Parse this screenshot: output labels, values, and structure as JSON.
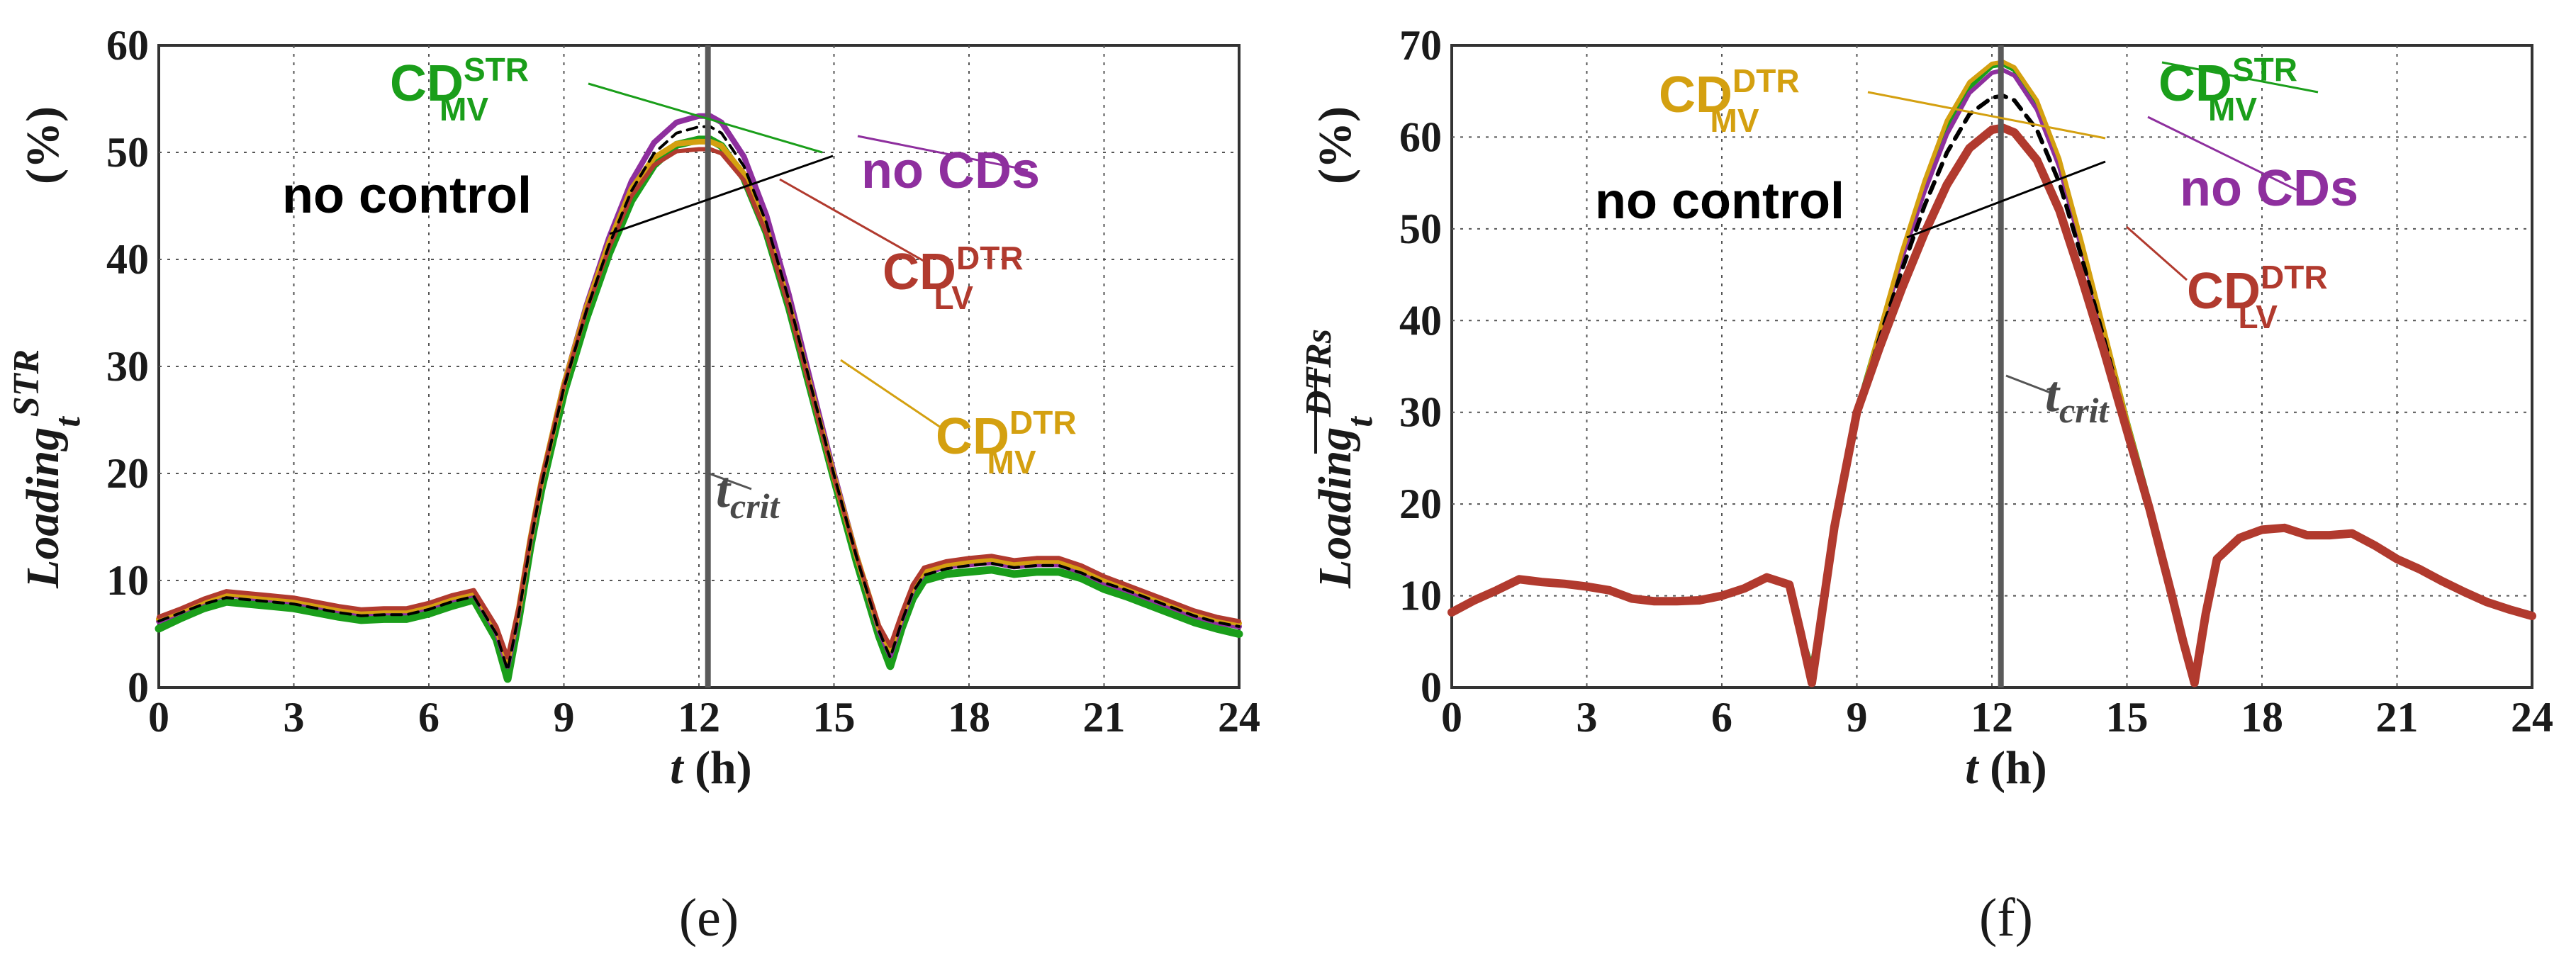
{
  "charts": [
    {
      "id": "e",
      "panel_label": "(e)",
      "ylabel_main": "Loading",
      "ylabel_sub": "t",
      "ylabel_sup": "STR",
      "ylabel_unit": "(%)",
      "xlabel_var": "t",
      "xlabel_unit": " (h)",
      "t_crit_base": "t",
      "t_crit_sub": "crit",
      "annotations": [
        {
          "base": "CD",
          "sup": "STR",
          "sub": "MV",
          "color": "#1a9e1a"
        },
        {
          "text": "no CDs",
          "color": "#8e2f9e"
        },
        {
          "text": "no control",
          "color": "#000000"
        },
        {
          "base": "CD",
          "sup": "DTR",
          "sub": "LV",
          "color": "#b13a2e"
        },
        {
          "base": "CD",
          "sup": "DTR",
          "sub": "MV",
          "color": "#d4a010"
        }
      ]
    },
    {
      "id": "f",
      "panel_label": "(f)",
      "ylabel_main": "Loading",
      "ylabel_sub": "t",
      "ylabel_sup": "DTRs",
      "ylabel_unit": "(%)",
      "xlabel_var": "t",
      "xlabel_unit": " (h)",
      "t_crit_base": "t",
      "t_crit_sub": "crit",
      "annotations": [
        {
          "base": "CD",
          "sup": "DTR",
          "sub": "MV",
          "color": "#d4a010"
        },
        {
          "base": "CD",
          "sup": "STR",
          "sub": "MV",
          "color": "#1a9e1a"
        },
        {
          "text": "no control",
          "color": "#000000"
        },
        {
          "text": "no CDs",
          "color": "#8e2f9e"
        },
        {
          "base": "CD",
          "sup": "DTR",
          "sub": "LV",
          "color": "#b13a2e"
        }
      ]
    }
  ],
  "chart_data": [
    {
      "type": "line",
      "title": "",
      "xlabel": "t (h)",
      "ylabel": "Loading_t^STR (%)",
      "xlim": [
        0,
        24
      ],
      "ylim": [
        0,
        60
      ],
      "xticks": [
        0,
        3,
        6,
        9,
        12,
        15,
        18,
        21,
        24
      ],
      "yticks": [
        0,
        10,
        20,
        30,
        40,
        50,
        60
      ],
      "grid": true,
      "vline": {
        "x": 12.2,
        "label": "t_crit"
      },
      "x": [
        0,
        0.5,
        1,
        1.5,
        2,
        2.5,
        3,
        3.5,
        4,
        4.5,
        5,
        5.5,
        6,
        6.5,
        7,
        7.5,
        7.75,
        8,
        8.25,
        8.5,
        9,
        9.5,
        10,
        10.5,
        11,
        11.5,
        12,
        12.25,
        12.5,
        13,
        13.5,
        14,
        14.5,
        15,
        15.5,
        16,
        16.25,
        16.5,
        16.75,
        17,
        17.5,
        18,
        18.5,
        19,
        19.5,
        20,
        20.5,
        21,
        21.5,
        22,
        22.5,
        23,
        23.5,
        24
      ],
      "series": [
        {
          "name": "CD_MV^STR",
          "color": "#1a9e1a",
          "width": 11,
          "dash": "",
          "values": [
            5.5,
            6.5,
            7.4,
            8.0,
            7.8,
            7.6,
            7.4,
            7.0,
            6.6,
            6.3,
            6.4,
            6.4,
            6.9,
            7.6,
            8.2,
            4.5,
            0.8,
            6.5,
            13.0,
            18.5,
            27.5,
            34.5,
            40.5,
            45.5,
            48.8,
            50.7,
            51.2,
            51.2,
            50.6,
            47.6,
            42.5,
            35.5,
            27.5,
            19.5,
            11.8,
            4.8,
            2.0,
            5.5,
            8.3,
            10.0,
            10.6,
            10.8,
            11.0,
            10.6,
            10.8,
            10.8,
            10.2,
            9.2,
            8.5,
            7.7,
            6.9,
            6.1,
            5.5,
            5.0
          ]
        },
        {
          "name": "no CDs",
          "color": "#8e2f9e",
          "width": 8,
          "dash": "",
          "values": [
            6.2,
            7.1,
            8.0,
            8.7,
            8.4,
            8.2,
            8.0,
            7.6,
            7.2,
            6.9,
            7.0,
            7.0,
            7.5,
            8.2,
            8.7,
            5.2,
            2.0,
            7.2,
            13.6,
            19.2,
            28.3,
            35.7,
            42.0,
            47.3,
            50.9,
            52.8,
            53.4,
            53.4,
            52.8,
            49.6,
            44.1,
            36.7,
            28.3,
            20.0,
            12.3,
            5.4,
            3.0,
            6.3,
            9.1,
            10.7,
            11.3,
            11.5,
            11.7,
            11.3,
            11.5,
            11.5,
            10.8,
            9.8,
            9.1,
            8.3,
            7.5,
            6.7,
            6.1,
            5.7
          ]
        },
        {
          "name": "CD_MV^DTR",
          "color": "#d4a010",
          "width": 8,
          "dash": "",
          "values": [
            6.4,
            7.2,
            8.1,
            8.8,
            8.6,
            8.4,
            8.2,
            7.8,
            7.4,
            7.1,
            7.2,
            7.2,
            7.7,
            8.4,
            8.9,
            5.5,
            2.5,
            7.4,
            13.8,
            19.3,
            28.3,
            35.5,
            41.5,
            46.6,
            49.5,
            50.8,
            51.0,
            51.0,
            50.6,
            48.0,
            42.9,
            35.8,
            27.7,
            19.7,
            12.3,
            5.6,
            3.5,
            6.6,
            9.3,
            10.9,
            11.5,
            11.8,
            12.0,
            11.6,
            11.8,
            11.8,
            11.1,
            10.1,
            9.4,
            8.6,
            7.8,
            7.0,
            6.4,
            6.0
          ]
        },
        {
          "name": "CD_LV^DTR",
          "color": "#b13a2e",
          "width": 6,
          "dash": "",
          "values": [
            6.6,
            7.4,
            8.3,
            9.0,
            8.8,
            8.6,
            8.4,
            8.0,
            7.6,
            7.3,
            7.4,
            7.4,
            7.9,
            8.6,
            9.1,
            5.7,
            2.8,
            7.6,
            13.9,
            19.4,
            28.2,
            35.2,
            41.0,
            45.9,
            48.8,
            50.1,
            50.3,
            50.3,
            49.9,
            47.4,
            42.4,
            35.5,
            27.5,
            19.6,
            12.3,
            5.8,
            3.9,
            6.9,
            9.6,
            11.2,
            11.8,
            12.1,
            12.3,
            11.9,
            12.1,
            12.1,
            11.4,
            10.4,
            9.6,
            8.8,
            8.0,
            7.2,
            6.6,
            6.2
          ]
        },
        {
          "name": "no control",
          "color": "#000000",
          "width": 4,
          "dash": "14 10",
          "values": [
            6.2,
            7.0,
            7.8,
            8.4,
            8.2,
            8.0,
            7.8,
            7.4,
            7.0,
            6.7,
            6.8,
            6.8,
            7.3,
            8.0,
            8.5,
            5.0,
            1.6,
            6.9,
            13.3,
            18.9,
            28.0,
            35.2,
            41.3,
            46.4,
            49.9,
            51.8,
            52.4,
            52.4,
            51.8,
            48.7,
            43.4,
            36.2,
            28.0,
            19.9,
            12.2,
            5.3,
            2.8,
            6.1,
            8.9,
            10.5,
            11.1,
            11.4,
            11.6,
            11.2,
            11.4,
            11.4,
            10.7,
            9.8,
            9.1,
            8.3,
            7.5,
            6.7,
            6.1,
            5.7
          ]
        }
      ]
    },
    {
      "type": "line",
      "title": "",
      "xlabel": "t (h)",
      "ylabel": "Loading_t^DTRs (%)",
      "xlim": [
        0,
        24
      ],
      "ylim": [
        0,
        70
      ],
      "xticks": [
        0,
        3,
        6,
        9,
        12,
        15,
        18,
        21,
        24
      ],
      "yticks": [
        0,
        10,
        20,
        30,
        40,
        50,
        60,
        70
      ],
      "grid": true,
      "vline": {
        "x": 12.2,
        "label": "t_crit"
      },
      "x": [
        0,
        0.5,
        1,
        1.5,
        2,
        2.5,
        3,
        3.5,
        4,
        4.5,
        5,
        5.5,
        6,
        6.5,
        7,
        7.5,
        7.75,
        8,
        8.25,
        8.5,
        9,
        9.5,
        10,
        10.5,
        11,
        11.5,
        12,
        12.25,
        12.5,
        13,
        13.5,
        14,
        14.5,
        15,
        15.5,
        16,
        16.25,
        16.5,
        16.75,
        17,
        17.5,
        18,
        18.5,
        19,
        19.5,
        20,
        20.5,
        21,
        21.5,
        22,
        22.5,
        23,
        23.5,
        24
      ],
      "series": [
        {
          "name": "CD_MV^STR",
          "color": "#1a9e1a",
          "width": 8,
          "dash": "",
          "values": [
            8.2,
            9.5,
            10.6,
            11.8,
            11.5,
            11.3,
            11.0,
            10.6,
            9.7,
            9.4,
            9.4,
            9.5,
            10.0,
            10.8,
            12.0,
            11.2,
            6.0,
            2.0,
            9.0,
            17.5,
            30.0,
            38.5,
            47.0,
            54.5,
            61.0,
            65.5,
            67.8,
            68.0,
            67.4,
            63.5,
            57.0,
            48.0,
            38.5,
            29.0,
            20.0,
            10.0,
            5.0,
            0.8,
            8.0,
            14.0,
            16.3,
            17.2,
            17.4,
            16.6,
            16.6,
            16.8,
            15.5,
            14.0,
            12.9,
            11.6,
            10.4,
            9.3,
            8.5,
            7.8
          ]
        },
        {
          "name": "no CDs",
          "color": "#8e2f9e",
          "width": 6,
          "dash": "",
          "values": [
            8.2,
            9.5,
            10.6,
            11.8,
            11.5,
            11.3,
            11.0,
            10.6,
            9.7,
            9.4,
            9.4,
            9.5,
            10.0,
            10.8,
            12.0,
            11.2,
            6.0,
            2.0,
            9.0,
            17.5,
            30.0,
            38.3,
            46.7,
            54.0,
            60.3,
            64.8,
            67.0,
            67.3,
            66.7,
            63.0,
            56.7,
            47.7,
            38.3,
            28.9,
            19.9,
            10.0,
            5.0,
            0.8,
            8.0,
            14.0,
            16.3,
            17.2,
            17.4,
            16.6,
            16.6,
            16.8,
            15.5,
            14.0,
            12.9,
            11.6,
            10.4,
            9.3,
            8.5,
            7.8
          ]
        },
        {
          "name": "CD_MV^DTR",
          "color": "#d4a010",
          "width": 6,
          "dash": "",
          "values": [
            8.2,
            9.5,
            10.6,
            11.8,
            11.5,
            11.3,
            11.0,
            10.6,
            9.7,
            9.4,
            9.4,
            9.5,
            10.0,
            10.8,
            12.0,
            11.2,
            6.0,
            2.0,
            9.0,
            17.5,
            30.0,
            38.8,
            47.5,
            55.2,
            61.8,
            66.0,
            68.0,
            68.2,
            67.6,
            64.0,
            57.6,
            48.5,
            38.9,
            29.2,
            20.1,
            10.0,
            5.0,
            0.8,
            8.0,
            14.0,
            16.3,
            17.2,
            17.4,
            16.6,
            16.6,
            16.8,
            15.5,
            14.0,
            12.9,
            11.6,
            10.4,
            9.3,
            8.5,
            7.8
          ]
        },
        {
          "name": "no control",
          "color": "#000000",
          "width": 6,
          "dash": "16 12",
          "values": [
            8.2,
            9.5,
            10.6,
            11.8,
            11.5,
            11.3,
            11.0,
            10.6,
            9.7,
            9.4,
            9.4,
            9.5,
            10.0,
            10.8,
            12.0,
            11.2,
            6.0,
            2.0,
            9.0,
            17.5,
            30.0,
            38.0,
            45.5,
            52.5,
            58.3,
            62.5,
            64.3,
            64.5,
            64.0,
            60.8,
            55.0,
            46.8,
            37.8,
            28.6,
            19.8,
            10.0,
            5.0,
            0.8,
            8.0,
            14.0,
            16.3,
            17.2,
            17.4,
            16.6,
            16.6,
            16.8,
            15.5,
            14.0,
            12.9,
            11.6,
            10.4,
            9.3,
            8.5,
            7.8
          ]
        },
        {
          "name": "CD_LV^DTR",
          "color": "#b13a2e",
          "width": 12,
          "dash": "",
          "values": [
            8.2,
            9.5,
            10.6,
            11.8,
            11.5,
            11.3,
            11.0,
            10.6,
            9.7,
            9.4,
            9.4,
            9.5,
            10.0,
            10.8,
            12.0,
            11.2,
            6.0,
            0.5,
            9.0,
            17.5,
            30.0,
            37.0,
            43.5,
            49.5,
            54.8,
            58.8,
            60.8,
            61.0,
            60.5,
            57.5,
            52.0,
            44.5,
            36.5,
            28.0,
            19.5,
            10.0,
            5.0,
            0.5,
            8.0,
            14.0,
            16.3,
            17.2,
            17.4,
            16.6,
            16.6,
            16.8,
            15.5,
            14.0,
            12.9,
            11.6,
            10.4,
            9.3,
            8.5,
            7.8
          ]
        }
      ]
    }
  ]
}
